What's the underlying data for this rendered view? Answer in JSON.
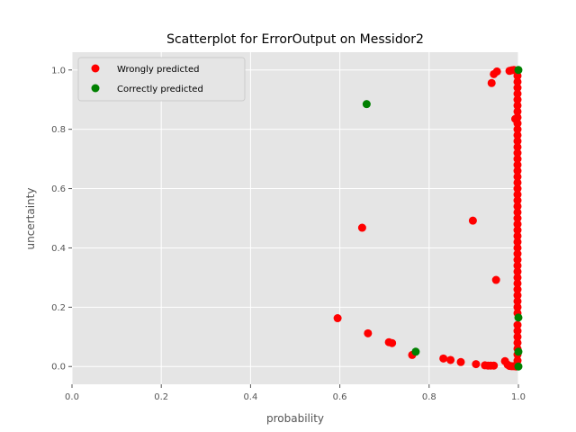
{
  "chart_data": {
    "type": "scatter",
    "title": "Scatterplot for ErrorOutput on Messidor2",
    "xlabel": "probability",
    "ylabel": "uncertainty",
    "xlim": [
      0.0,
      1.0
    ],
    "ylim": [
      -0.06,
      1.06
    ],
    "xticks": [
      "0.0",
      "0.2",
      "0.4",
      "0.6",
      "0.8",
      "1.0"
    ],
    "yticks": [
      "0.0",
      "0.2",
      "0.4",
      "0.6",
      "0.8",
      "1.0"
    ],
    "grid": true,
    "legend_position": "top-left",
    "series": [
      {
        "name": "Wrongly predicted",
        "color": "#ff0000",
        "points": [
          [
            0.595,
            0.163
          ],
          [
            0.65,
            0.468
          ],
          [
            0.663,
            0.112
          ],
          [
            0.71,
            0.082
          ],
          [
            0.717,
            0.079
          ],
          [
            0.762,
            0.039
          ],
          [
            0.832,
            0.027
          ],
          [
            0.848,
            0.022
          ],
          [
            0.871,
            0.015
          ],
          [
            0.905,
            0.008
          ],
          [
            0.925,
            0.004
          ],
          [
            0.932,
            0.003
          ],
          [
            0.938,
            0.003
          ],
          [
            0.945,
            0.003
          ],
          [
            0.97,
            0.018
          ],
          [
            0.976,
            0.006
          ],
          [
            0.98,
            0.002
          ],
          [
            0.985,
            0.001
          ],
          [
            0.99,
            0.001
          ],
          [
            0.995,
            0.0
          ],
          [
            0.898,
            0.492
          ],
          [
            0.95,
            0.292
          ],
          [
            0.94,
            0.956
          ],
          [
            0.945,
            0.986
          ],
          [
            0.952,
            0.995
          ],
          [
            0.98,
            0.997
          ],
          [
            0.985,
            0.999
          ],
          [
            0.99,
            1.0
          ],
          [
            0.993,
            0.835
          ],
          [
            0.998,
            0.98
          ],
          [
            0.998,
            0.96
          ],
          [
            0.998,
            0.94
          ],
          [
            0.998,
            0.92
          ],
          [
            0.998,
            0.9
          ],
          [
            0.998,
            0.88
          ],
          [
            0.998,
            0.86
          ],
          [
            0.998,
            0.84
          ],
          [
            0.998,
            0.82
          ],
          [
            0.998,
            0.8
          ],
          [
            0.998,
            0.78
          ],
          [
            0.998,
            0.76
          ],
          [
            0.998,
            0.74
          ],
          [
            0.998,
            0.72
          ],
          [
            0.998,
            0.7
          ],
          [
            0.998,
            0.68
          ],
          [
            0.998,
            0.66
          ],
          [
            0.998,
            0.64
          ],
          [
            0.998,
            0.62
          ],
          [
            0.998,
            0.6
          ],
          [
            0.998,
            0.58
          ],
          [
            0.998,
            0.56
          ],
          [
            0.998,
            0.54
          ],
          [
            0.998,
            0.52
          ],
          [
            0.998,
            0.5
          ],
          [
            0.998,
            0.48
          ],
          [
            0.998,
            0.46
          ],
          [
            0.998,
            0.44
          ],
          [
            0.998,
            0.42
          ],
          [
            0.998,
            0.4
          ],
          [
            0.998,
            0.38
          ],
          [
            0.998,
            0.36
          ],
          [
            0.998,
            0.34
          ],
          [
            0.998,
            0.32
          ],
          [
            0.998,
            0.3
          ],
          [
            0.998,
            0.28
          ],
          [
            0.998,
            0.26
          ],
          [
            0.998,
            0.24
          ],
          [
            0.998,
            0.22
          ],
          [
            0.998,
            0.2
          ],
          [
            0.998,
            0.18
          ],
          [
            0.998,
            0.14
          ],
          [
            0.998,
            0.12
          ],
          [
            0.998,
            0.1
          ],
          [
            0.998,
            0.08
          ],
          [
            0.998,
            0.06
          ],
          [
            0.998,
            0.04
          ],
          [
            0.998,
            0.02
          ]
        ]
      },
      {
        "name": "Correctly predicted",
        "color": "#008000",
        "points": [
          [
            0.66,
            0.885
          ],
          [
            0.77,
            0.05
          ],
          [
            1.0,
            1.0
          ],
          [
            1.0,
            0.165
          ],
          [
            1.0,
            0.05
          ],
          [
            1.0,
            0.0
          ]
        ]
      }
    ]
  }
}
